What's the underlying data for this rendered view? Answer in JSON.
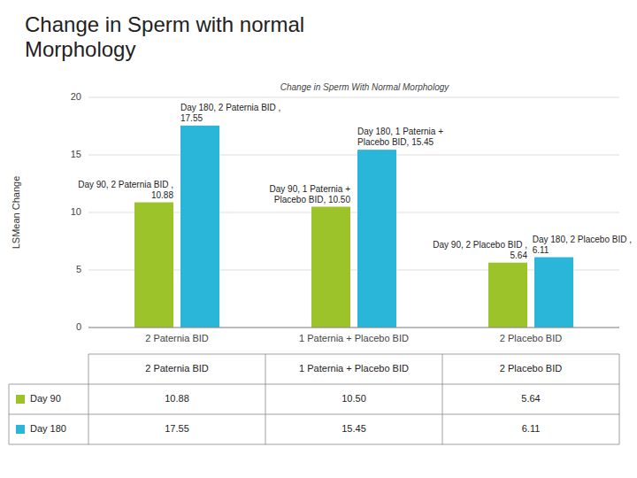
{
  "chart_data": {
    "type": "bar",
    "title": "Change in Sperm with normal\nMorphology",
    "subtitle": "Change in Sperm With Normal Morphology",
    "ylabel": "LSMean Change",
    "categories": [
      "2 Paternia BID",
      "1 Paternia + Placebo BID",
      "2 Placebo BID"
    ],
    "series": [
      {
        "name": "Day 90",
        "color": "#9dc32a",
        "values": [
          10.88,
          10.5,
          5.64
        ],
        "value_labels": [
          "Day 90, 2 Paternia BID ,\n10.88",
          "Day 90, 1 Paternia +\nPlacebo BID, 10.50",
          "Day 90, 2 Placebo BID ,\n5.64"
        ]
      },
      {
        "name": "Day 180",
        "color": "#29b6d8",
        "values": [
          17.55,
          15.45,
          6.11
        ],
        "value_labels": [
          "Day 180, 2 Paternia BID ,\n17.55",
          "Day 180, 1 Paternia +\nPlacebo BID, 15.45",
          "Day 180, 2 Placebo BID ,\n6.11"
        ]
      }
    ],
    "ylim": [
      0,
      20
    ],
    "yticks": [
      0,
      5,
      10,
      15,
      20
    ],
    "grid": true,
    "data_labels": true,
    "table_cells": [
      [
        "10.88",
        "10.50",
        "5.64"
      ],
      [
        "17.55",
        "15.45",
        "6.11"
      ]
    ]
  }
}
